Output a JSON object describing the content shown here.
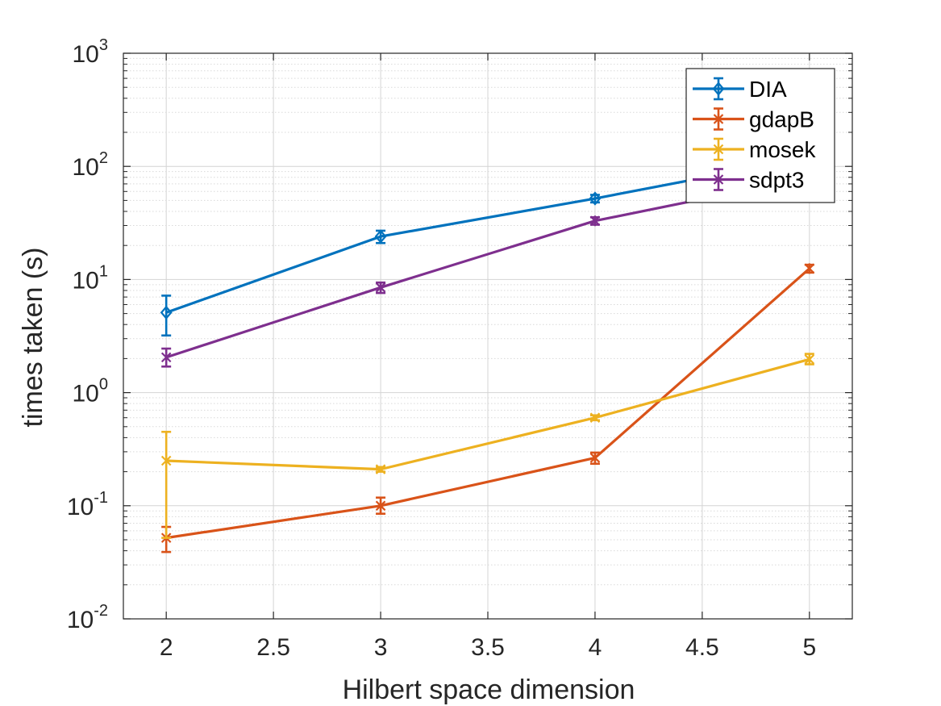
{
  "chart_data": {
    "type": "line",
    "xlabel": "Hilbert space dimension",
    "ylabel": "times taken (s)",
    "xlim": [
      1.8,
      5.2
    ],
    "ylim": [
      0.01,
      1000
    ],
    "yscale": "log",
    "grid": true,
    "minor_grid": true,
    "xticks": [
      "2",
      "2.5",
      "3",
      "3.5",
      "4",
      "4.5",
      "5"
    ],
    "yticks": [
      {
        "base": "10",
        "exp": "-2"
      },
      {
        "base": "10",
        "exp": "-1"
      },
      {
        "base": "10",
        "exp": "0"
      },
      {
        "base": "10",
        "exp": "1"
      },
      {
        "base": "10",
        "exp": "2"
      },
      {
        "base": "10",
        "exp": "3"
      }
    ],
    "legend_position": "top-right",
    "x": [
      2,
      3,
      4,
      5
    ],
    "series": [
      {
        "name": "DIA",
        "color": "#0072BD",
        "marker": "diamond",
        "values": [
          5.1,
          24,
          52,
          120
        ],
        "err_low": [
          3.2,
          21,
          48,
          110
        ],
        "err_high": [
          7.2,
          27,
          56,
          130
        ]
      },
      {
        "name": "gdapB",
        "color": "#D95319",
        "marker": "asterisk",
        "values": [
          0.052,
          0.1,
          0.265,
          12.5
        ],
        "err_low": [
          0.039,
          0.085,
          0.235,
          11.5
        ],
        "err_high": [
          0.065,
          0.118,
          0.295,
          13.5
        ]
      },
      {
        "name": "mosek",
        "color": "#EDB120",
        "marker": "x",
        "values": [
          0.25,
          0.21,
          0.6,
          1.97
        ],
        "err_low": [
          0.052,
          0.2,
          0.57,
          1.78
        ],
        "err_high": [
          0.45,
          0.22,
          0.63,
          2.2
        ]
      },
      {
        "name": "sdpt3",
        "color": "#7E2F8E",
        "marker": "asterisk",
        "values": [
          2.05,
          8.5,
          33,
          80
        ],
        "err_low": [
          1.7,
          7.6,
          30.5,
          74
        ],
        "err_high": [
          2.45,
          9.4,
          35.5,
          86
        ]
      }
    ]
  }
}
